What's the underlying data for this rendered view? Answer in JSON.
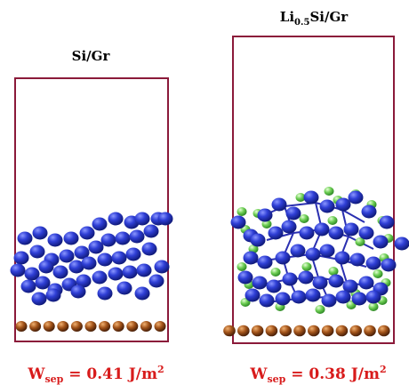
{
  "panels": {
    "left": {
      "title": "Si/Gr",
      "energy_label": "W",
      "energy_sub": "sep",
      "energy_value": " = 0.41 J/m",
      "energy_sup": "2"
    },
    "right": {
      "title_main": "Li",
      "title_sub": "0.5",
      "title_rest": "Si/Gr",
      "energy_label": "W",
      "energy_sub": "sep",
      "energy_value": " = 0.38 J/m",
      "energy_sup": "2"
    }
  },
  "colors": {
    "box": "#8b1a3a",
    "si_atom": "#2f3fd6",
    "li_atom": "#66cc55",
    "carbon_atom": "#9a4a14",
    "energy_text": "#d81b1b",
    "bond": "#2a2fb0"
  }
}
